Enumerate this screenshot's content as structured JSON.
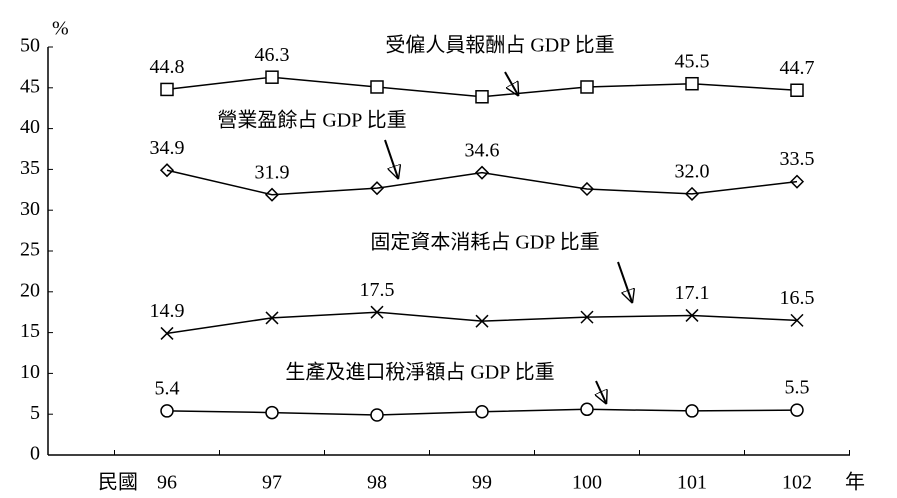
{
  "chart_data": {
    "type": "line",
    "y_label": "%",
    "x_prefix": "民國",
    "x_suffix": "年",
    "categories": [
      "96",
      "97",
      "98",
      "99",
      "100",
      "101",
      "102"
    ],
    "ylim": [
      0,
      50
    ],
    "yticks": [
      0,
      5,
      10,
      15,
      20,
      25,
      30,
      35,
      40,
      45,
      50
    ],
    "grid": false,
    "series": [
      {
        "name": "受僱人員報酬占 GDP 比重",
        "color": "#000000",
        "marker": "square",
        "values": [
          44.8,
          46.3,
          45.1,
          43.9,
          45.1,
          45.5,
          44.7
        ],
        "value_labels": [
          "44.8",
          "46.3",
          null,
          null,
          null,
          "45.5",
          "44.7"
        ]
      },
      {
        "name": "營業盈餘占 GDP 比重",
        "color": "#000000",
        "marker": "diamond",
        "values": [
          34.9,
          31.9,
          32.7,
          34.6,
          32.6,
          32.0,
          33.5
        ],
        "value_labels": [
          "34.9",
          "31.9",
          null,
          "34.6",
          null,
          "32.0",
          "33.5"
        ]
      },
      {
        "name": "固定資本消耗占 GDP 比重",
        "color": "#000000",
        "marker": "x",
        "values": [
          14.9,
          16.8,
          17.5,
          16.4,
          16.9,
          17.1,
          16.5
        ],
        "value_labels": [
          "14.9",
          null,
          "17.5",
          null,
          null,
          "17.1",
          "16.5"
        ]
      },
      {
        "name": "生產及進口稅淨額占 GDP 比重",
        "color": "#000000",
        "marker": "circle",
        "values": [
          5.4,
          5.2,
          4.9,
          5.3,
          5.6,
          5.4,
          5.5
        ],
        "value_labels": [
          "5.4",
          null,
          null,
          null,
          null,
          null,
          "5.5"
        ]
      }
    ]
  }
}
